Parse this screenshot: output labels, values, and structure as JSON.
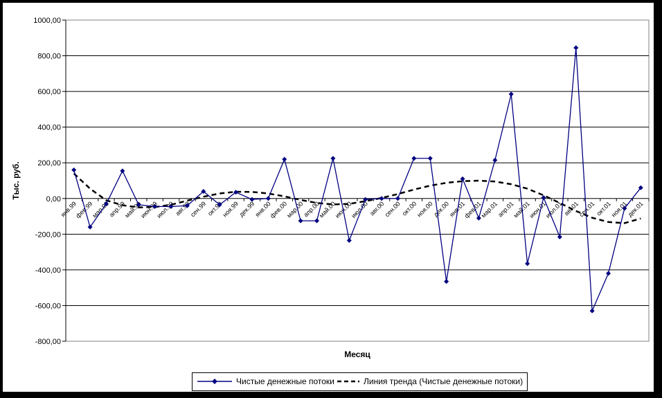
{
  "chart_data": {
    "type": "line",
    "title": "",
    "xlabel": "Месяц",
    "ylabel": "Тыс. руб.",
    "ylim": [
      -800,
      1000
    ],
    "ytick_step": 200,
    "ytick_values": [
      1000,
      800,
      600,
      400,
      200,
      0,
      -200,
      -400,
      -600,
      -800
    ],
    "ytick_labels": [
      "1000,00",
      "800,00",
      "600,00",
      "400,00",
      "200,00",
      "0,00",
      "-200,00",
      "-400,00",
      "-600,00",
      "-800,00"
    ],
    "grid": true,
    "legend_position": "bottom",
    "categories": [
      "янв.99",
      "фев.99",
      "мар.99",
      "апр.99",
      "май.99",
      "июн.99",
      "июл.99",
      "авг.99",
      "сен.99",
      "окт.99",
      "ноя.99",
      "дек.99",
      "янв.00",
      "фев.00",
      "мар.00",
      "апр.00",
      "май.00",
      "июн.00",
      "июл.00",
      "авг.00",
      "сен.00",
      "окт.00",
      "ноя.00",
      "дек.00",
      "янв.01",
      "фев.01",
      "мар.01",
      "апр.01",
      "май.01",
      "июн.01",
      "июл.01",
      "авг.01",
      "сен.01",
      "окт.01",
      "ноя.01",
      "дек.01"
    ],
    "series": [
      {
        "name": "Чистые денежные потоки",
        "color": "#000080",
        "style": "solid-with-diamond-markers",
        "values": [
          160,
          -160,
          -30,
          155,
          -35,
          -45,
          -45,
          -40,
          40,
          -35,
          35,
          -5,
          0,
          220,
          -125,
          -125,
          225,
          -235,
          -5,
          0,
          0,
          225,
          225,
          -465,
          110,
          -110,
          215,
          585,
          -365,
          5,
          -215,
          845,
          -630,
          -420,
          -55,
          60
        ]
      },
      {
        "name": "Линия тренда (Чистые денежные потоки)",
        "color": "#000000",
        "style": "dashed-trend",
        "values": [
          140,
          55,
          -10,
          -38,
          -50,
          -48,
          -35,
          -12,
          10,
          28,
          38,
          37,
          28,
          12,
          -8,
          -25,
          -33,
          -30,
          -15,
          3,
          25,
          50,
          72,
          88,
          97,
          100,
          95,
          80,
          55,
          18,
          -25,
          -70,
          -108,
          -132,
          -138,
          -112
        ]
      }
    ],
    "colors": {
      "series_line": "#000080",
      "trend_line": "#000000",
      "gridline": "#000000",
      "plot_border": "#808080",
      "background": "#ffffff",
      "outer_frame": "#000000"
    }
  }
}
